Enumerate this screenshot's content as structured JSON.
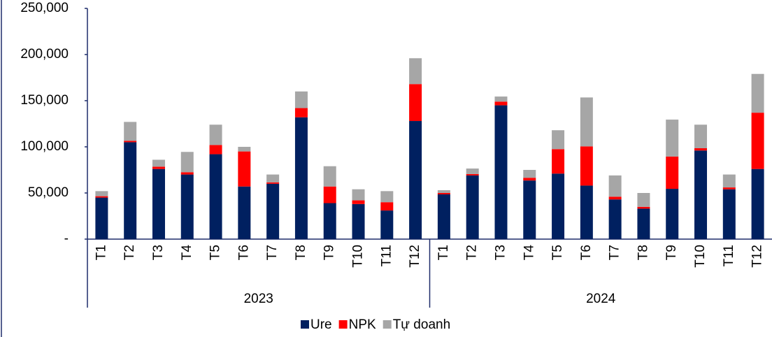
{
  "chart_data": {
    "type": "stacked_bar",
    "groups": [
      {
        "name": "2023",
        "categories": [
          "T1",
          "T2",
          "T3",
          "T4",
          "T5",
          "T6",
          "T7",
          "T8",
          "T9",
          "T10",
          "T11",
          "T12"
        ]
      },
      {
        "name": "2024",
        "categories": [
          "T1",
          "T2",
          "T3",
          "T4",
          "T5",
          "T6",
          "T7",
          "T8",
          "T9",
          "T10",
          "T11",
          "T12"
        ]
      }
    ],
    "series": [
      {
        "name": "Ure",
        "color": "#002060",
        "values": [
          45000,
          105000,
          76000,
          70000,
          92000,
          57000,
          60000,
          132000,
          39000,
          38000,
          31000,
          128000,
          48500,
          69000,
          145000,
          63500,
          71000,
          58000,
          43000,
          33000,
          54500,
          96000,
          54000,
          76000
        ]
      },
      {
        "name": "NPK",
        "color": "#ff0000",
        "values": [
          1500,
          1500,
          2500,
          2500,
          10000,
          38000,
          1500,
          10000,
          18000,
          4000,
          9000,
          40000,
          1500,
          1500,
          4000,
          3000,
          26500,
          42500,
          3000,
          2000,
          35000,
          2500,
          2000,
          61000
        ]
      },
      {
        "name": "Tự doanh",
        "color": "#a6a6a6",
        "values": [
          5500,
          20500,
          7500,
          22000,
          22000,
          5000,
          8500,
          18000,
          22000,
          12000,
          12000,
          28000,
          3000,
          6000,
          5500,
          8500,
          20500,
          53000,
          23000,
          15000,
          40000,
          25500,
          14000,
          42000
        ]
      }
    ],
    "ylim": [
      0,
      250000
    ],
    "yticks": [
      {
        "value": 0,
        "label": "-"
      },
      {
        "value": 50000,
        "label": "50,000"
      },
      {
        "value": 100000,
        "label": "100,000"
      },
      {
        "value": 150000,
        "label": "150,000"
      },
      {
        "value": 200000,
        "label": "200,000"
      },
      {
        "value": 250000,
        "label": "250,000"
      }
    ],
    "legend": "bottom"
  }
}
